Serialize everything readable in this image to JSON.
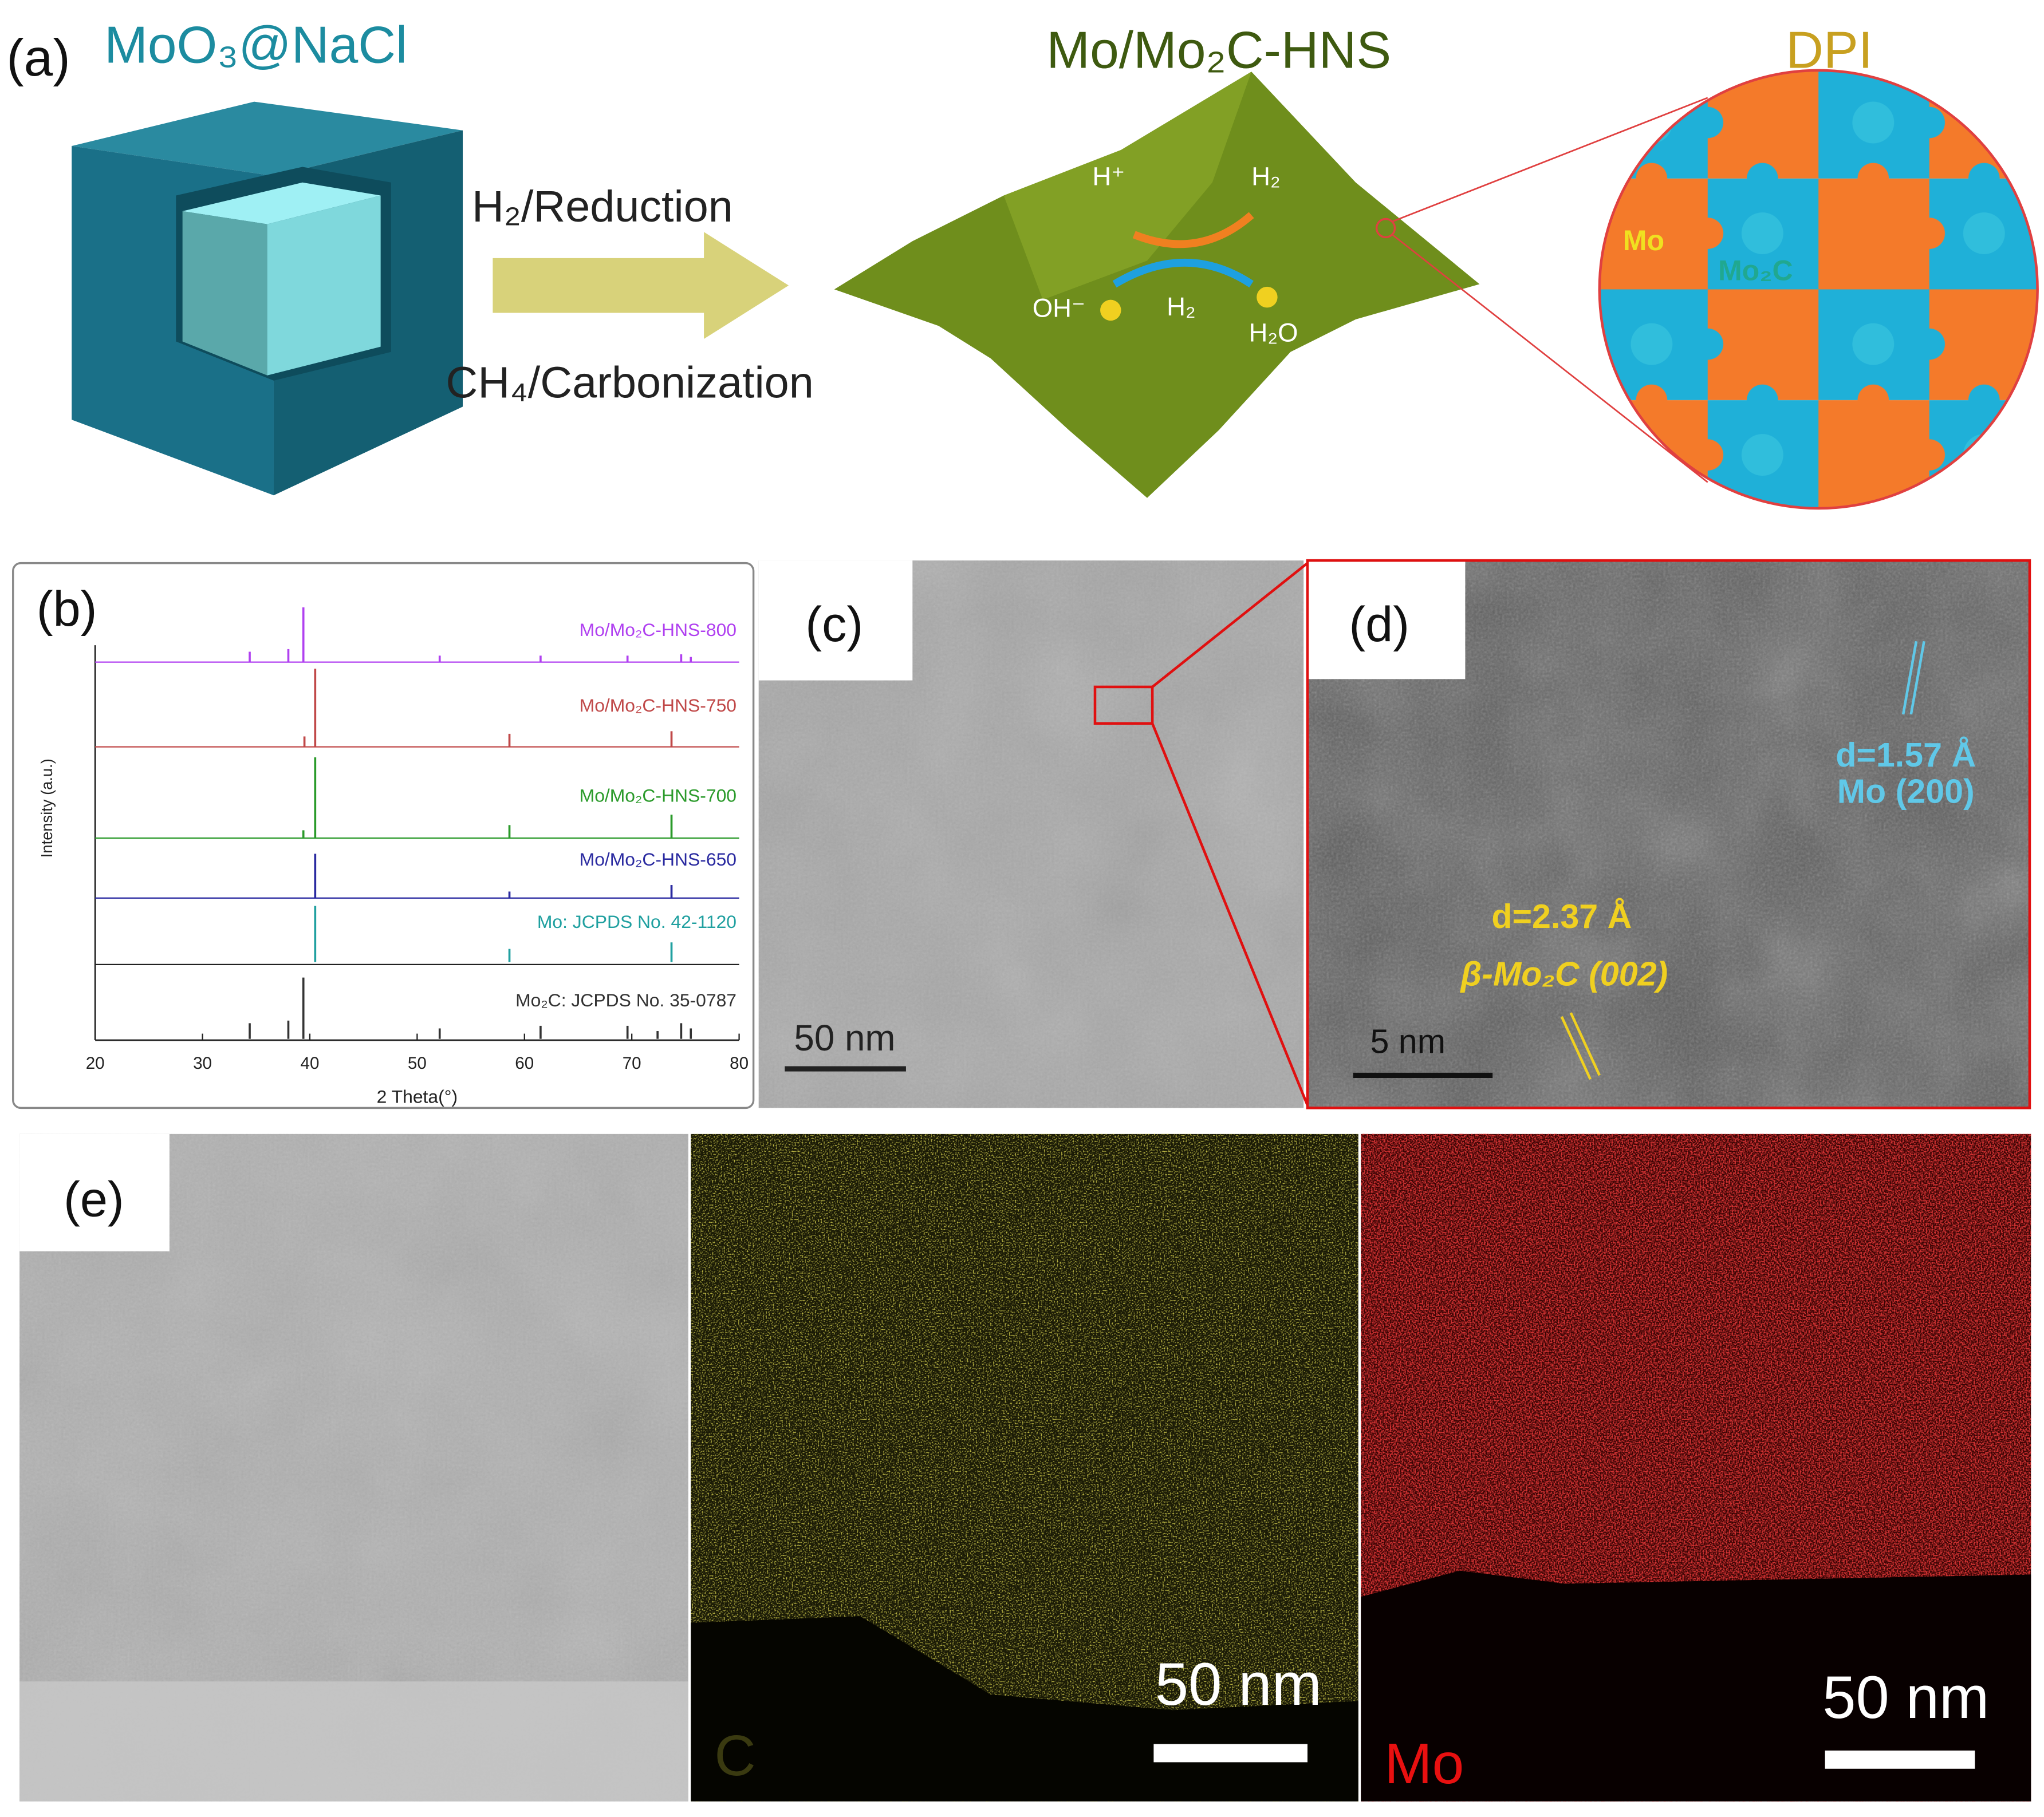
{
  "panel_a": {
    "label": "(a)",
    "precursor": "MoO₃@NaCl",
    "step_1": "H₂/Reduction",
    "step_2": "CH₄/Carbonization",
    "product": "Mo/Mo₂C-HNS",
    "reactions": [
      "H⁺",
      "H₂",
      "OH⁻",
      "H₂",
      "H₂O"
    ],
    "inset_title": "DPI",
    "inset_labels": [
      "Mo",
      "Mo₂C"
    ]
  },
  "chart_data": {
    "type": "stick",
    "panel_label": "(b)",
    "xlabel": "2 Theta(°)",
    "ylabel": "Intensity (a.u.)",
    "xlim": [
      20,
      80
    ],
    "xticks": [
      20,
      30,
      40,
      50,
      60,
      70,
      80
    ],
    "series": [
      {
        "name": "Mo/Mo₂C-HNS-800",
        "color": "#b040f0",
        "x": [
          34.4,
          38,
          39.4,
          52.1,
          61.5,
          69.6,
          74.6,
          75.5
        ],
        "values": [
          8,
          10,
          42,
          5,
          5,
          5,
          6,
          4
        ]
      },
      {
        "name": "Mo/Mo₂C-HNS-750",
        "color": "#c04848",
        "x": [
          39.5,
          40.5,
          58.6,
          73.7
        ],
        "values": [
          8,
          60,
          10,
          12
        ]
      },
      {
        "name": "Mo/Mo₂C-HNS-700",
        "color": "#2a9a2a",
        "x": [
          39.4,
          40.5,
          58.6,
          73.7
        ],
        "values": [
          6,
          62,
          10,
          18
        ]
      },
      {
        "name": "Mo/Mo₂C-HNS-650",
        "color": "#2a2aa0",
        "x": [
          40.5,
          58.6,
          73.7
        ],
        "values": [
          34,
          5,
          10
        ]
      },
      {
        "name": "Mo: JCPDS No. 42-1120",
        "color": "#20a0a0",
        "x": [
          40.5,
          58.6,
          73.7
        ],
        "values": [
          43,
          10,
          15
        ]
      },
      {
        "name": "Mo₂C: JCPDS No. 35-0787",
        "color": "#333333",
        "x": [
          34.4,
          38,
          39.4,
          52.1,
          61.5,
          69.6,
          72.4,
          74.6,
          75.5
        ],
        "values": [
          12,
          14,
          47,
          8,
          10,
          10,
          6,
          12,
          8
        ]
      }
    ]
  },
  "panel_c": {
    "label": "(c)",
    "scale_bar": "50 nm"
  },
  "panel_d": {
    "label": "(d)",
    "spacing_1": "d=1.57 Å",
    "plane_1": "Mo (200)",
    "spacing_2": "d=2.37 Å",
    "plane_2": "β-Mo₂C (002)",
    "scale_bar": "5 nm"
  },
  "panel_e": {
    "label": "(e)",
    "scale_bar_c": "50 nm",
    "map_c": "C",
    "scale_bar_mo": "50 nm",
    "map_mo": "Mo"
  }
}
